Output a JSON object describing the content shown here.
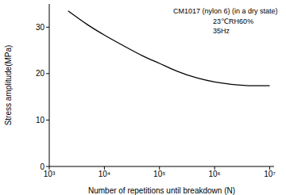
{
  "chart_data": {
    "type": "line",
    "x_label": "Number of repetitions until breakdown (N)",
    "y_label": "Stress amplitude(MPa)",
    "annotations": [
      "CM1017 (nylon 6) (in a dry state)",
      "23℃RH60%",
      "35Hz"
    ],
    "log": "x",
    "grid": false,
    "series": [
      {
        "name": "CM1017 (nylon 6)",
        "color": "#000000",
        "x": [
          2200,
          5000,
          10000,
          20000,
          50000,
          100000,
          200000,
          500000,
          1000000,
          2000000,
          5000000,
          10000000
        ],
        "values": [
          33.5,
          30.5,
          28.3,
          26.3,
          23.8,
          22.2,
          20.6,
          19.0,
          18.2,
          17.7,
          17.4,
          17.4
        ]
      }
    ],
    "xlim": [
      1000,
      12000000
    ],
    "xticks": [
      {
        "value": 1000,
        "label": "10³"
      },
      {
        "value": 10000,
        "label": "10⁴"
      },
      {
        "value": 100000,
        "label": "10⁵"
      },
      {
        "value": 1000000,
        "label": "10⁶"
      },
      {
        "value": 10000000,
        "label": "10⁷"
      }
    ],
    "ylim": [
      0,
      35
    ],
    "yticks": [
      0,
      10,
      20,
      30
    ]
  }
}
